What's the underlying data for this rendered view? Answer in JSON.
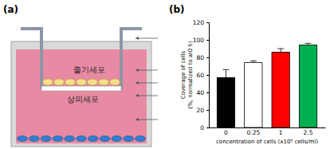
{
  "panel_labels": [
    "(a)",
    "(b)"
  ],
  "diagram": {
    "labels": [
      "줄기세포",
      "상피세포"
    ]
  },
  "chart_data": {
    "type": "bar",
    "ylabel": [
      "Coverage of cells",
      "(%, normalized to at0 h)"
    ],
    "xlabel": "concentration of cells (x10⁵ cells/ml)",
    "categories": [
      "0",
      "0.25",
      "1",
      "2.5"
    ],
    "values": [
      57,
      74,
      86,
      94
    ],
    "errors": [
      9,
      2,
      4,
      2
    ],
    "colors": [
      "#000000",
      "#ffffff",
      "#ff0000",
      "#00b050"
    ],
    "ylim": [
      0,
      120
    ],
    "yticks": [
      0,
      20,
      40,
      60,
      80,
      100,
      120
    ],
    "grid": false
  }
}
